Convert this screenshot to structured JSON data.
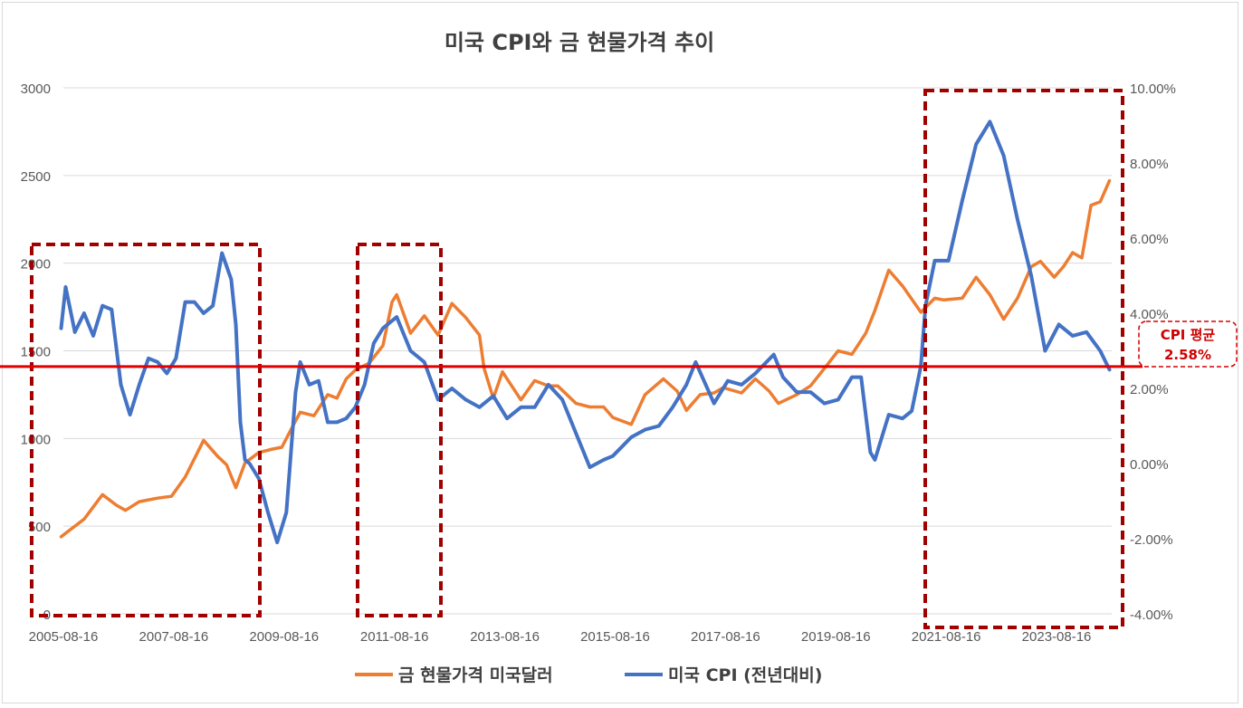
{
  "chart_data": {
    "type": "line",
    "title": "미국 CPI와 금 현물가격 추이",
    "x_ticks": [
      "2005-08-16",
      "2007-08-16",
      "2009-08-16",
      "2011-08-16",
      "2013-08-16",
      "2015-08-16",
      "2017-08-16",
      "2019-08-16",
      "2021-08-16",
      "2023-08-16"
    ],
    "x_range": [
      "2005-08-16",
      "2024-08-16"
    ],
    "y_left_ticks": [
      "0",
      "500",
      "1000",
      "1500",
      "2000",
      "2500",
      "3000"
    ],
    "y_left_range": [
      0,
      3000
    ],
    "y_right_ticks": [
      "-4.00%",
      "-2.00%",
      "0.00%",
      "2.00%",
      "4.00%",
      "6.00%",
      "8.00%",
      "10.00%"
    ],
    "y_right_range": [
      -4,
      10
    ],
    "grid": true,
    "legend_position": "bottom",
    "series": [
      {
        "name": "금 현물가격 미국달러",
        "axis": "left",
        "color": "#ED7D31",
        "x": [
          "2005-08",
          "2006-01",
          "2006-05",
          "2006-08",
          "2006-10",
          "2007-01",
          "2007-05",
          "2007-08",
          "2007-11",
          "2008-03",
          "2008-06",
          "2008-08",
          "2008-10",
          "2008-12",
          "2009-03",
          "2009-06",
          "2009-08",
          "2009-10",
          "2009-12",
          "2010-03",
          "2010-06",
          "2010-08",
          "2010-10",
          "2010-12",
          "2011-03",
          "2011-06",
          "2011-08",
          "2011-09",
          "2011-12",
          "2012-03",
          "2012-06",
          "2012-09",
          "2012-12",
          "2013-03",
          "2013-04",
          "2013-06",
          "2013-08",
          "2013-12",
          "2014-03",
          "2014-06",
          "2014-08",
          "2014-12",
          "2015-03",
          "2015-06",
          "2015-08",
          "2015-12",
          "2016-03",
          "2016-07",
          "2016-10",
          "2016-12",
          "2017-03",
          "2017-06",
          "2017-08",
          "2017-12",
          "2018-03",
          "2018-06",
          "2018-08",
          "2018-12",
          "2019-03",
          "2019-06",
          "2019-09",
          "2019-12",
          "2020-03",
          "2020-05",
          "2020-08",
          "2020-11",
          "2021-03",
          "2021-06",
          "2021-08",
          "2021-12",
          "2022-03",
          "2022-06",
          "2022-09",
          "2022-12",
          "2023-03",
          "2023-05",
          "2023-08",
          "2023-10",
          "2023-12",
          "2024-02",
          "2024-04",
          "2024-06",
          "2024-08"
        ],
        "values": [
          440,
          540,
          680,
          620,
          590,
          640,
          660,
          670,
          780,
          990,
          900,
          850,
          720,
          860,
          920,
          940,
          950,
          1050,
          1150,
          1130,
          1250,
          1230,
          1340,
          1390,
          1430,
          1530,
          1780,
          1820,
          1600,
          1700,
          1590,
          1770,
          1690,
          1590,
          1400,
          1230,
          1380,
          1220,
          1330,
          1300,
          1300,
          1200,
          1180,
          1180,
          1120,
          1080,
          1250,
          1340,
          1270,
          1160,
          1250,
          1260,
          1290,
          1260,
          1340,
          1270,
          1200,
          1250,
          1300,
          1400,
          1500,
          1480,
          1600,
          1730,
          1960,
          1870,
          1720,
          1800,
          1790,
          1800,
          1920,
          1820,
          1680,
          1800,
          1980,
          2010,
          1920,
          1980,
          2060,
          2030,
          2330,
          2350,
          2470
        ]
      },
      {
        "name": "미국 CPI (전년대비)",
        "axis": "right",
        "color": "#4472C4",
        "x": [
          "2005-08",
          "2005-09",
          "2005-11",
          "2006-01",
          "2006-03",
          "2006-05",
          "2006-07",
          "2006-09",
          "2006-11",
          "2007-01",
          "2007-03",
          "2007-05",
          "2007-07",
          "2007-09",
          "2007-11",
          "2008-01",
          "2008-03",
          "2008-05",
          "2008-07",
          "2008-09",
          "2008-10",
          "2008-11",
          "2008-12",
          "2009-01",
          "2009-03",
          "2009-05",
          "2009-07",
          "2009-09",
          "2009-11",
          "2009-12",
          "2010-02",
          "2010-04",
          "2010-06",
          "2010-08",
          "2010-10",
          "2010-12",
          "2011-02",
          "2011-04",
          "2011-06",
          "2011-09",
          "2011-12",
          "2012-03",
          "2012-06",
          "2012-09",
          "2012-12",
          "2013-03",
          "2013-06",
          "2013-09",
          "2013-12",
          "2014-03",
          "2014-06",
          "2014-09",
          "2014-12",
          "2015-03",
          "2015-06",
          "2015-08",
          "2015-12",
          "2016-03",
          "2016-06",
          "2016-09",
          "2016-12",
          "2017-02",
          "2017-06",
          "2017-09",
          "2017-12",
          "2018-03",
          "2018-07",
          "2018-09",
          "2018-12",
          "2019-03",
          "2019-06",
          "2019-09",
          "2019-12",
          "2020-02",
          "2020-04",
          "2020-05",
          "2020-08",
          "2020-11",
          "2021-01",
          "2021-03",
          "2021-04",
          "2021-06",
          "2021-09",
          "2021-12",
          "2022-03",
          "2022-06",
          "2022-09",
          "2022-12",
          "2023-03",
          "2023-06",
          "2023-09",
          "2023-12",
          "2024-03",
          "2024-06",
          "2024-08"
        ],
        "values": [
          3.6,
          4.7,
          3.5,
          4.0,
          3.4,
          4.2,
          4.1,
          2.1,
          1.3,
          2.1,
          2.8,
          2.7,
          2.4,
          2.8,
          4.3,
          4.3,
          4.0,
          4.2,
          5.6,
          4.9,
          3.7,
          1.1,
          0.1,
          0.0,
          -0.4,
          -1.3,
          -2.1,
          -1.3,
          1.9,
          2.7,
          2.1,
          2.2,
          1.1,
          1.1,
          1.2,
          1.5,
          2.1,
          3.2,
          3.6,
          3.9,
          3.0,
          2.7,
          1.7,
          2.0,
          1.7,
          1.5,
          1.8,
          1.2,
          1.5,
          1.5,
          2.1,
          1.7,
          0.8,
          -0.1,
          0.1,
          0.2,
          0.7,
          0.9,
          1.0,
          1.5,
          2.1,
          2.7,
          1.6,
          2.2,
          2.1,
          2.4,
          2.9,
          2.3,
          1.9,
          1.9,
          1.6,
          1.7,
          2.3,
          2.3,
          0.3,
          0.1,
          1.3,
          1.2,
          1.4,
          2.6,
          4.2,
          5.4,
          5.4,
          7.0,
          8.5,
          9.1,
          8.2,
          6.5,
          5.0,
          3.0,
          3.7,
          3.4,
          3.5,
          3.0,
          2.5
        ]
      }
    ],
    "annotations": {
      "line_label_1": "CPI 평균",
      "line_label_2": "2.58%",
      "average_value": 2.58
    }
  }
}
